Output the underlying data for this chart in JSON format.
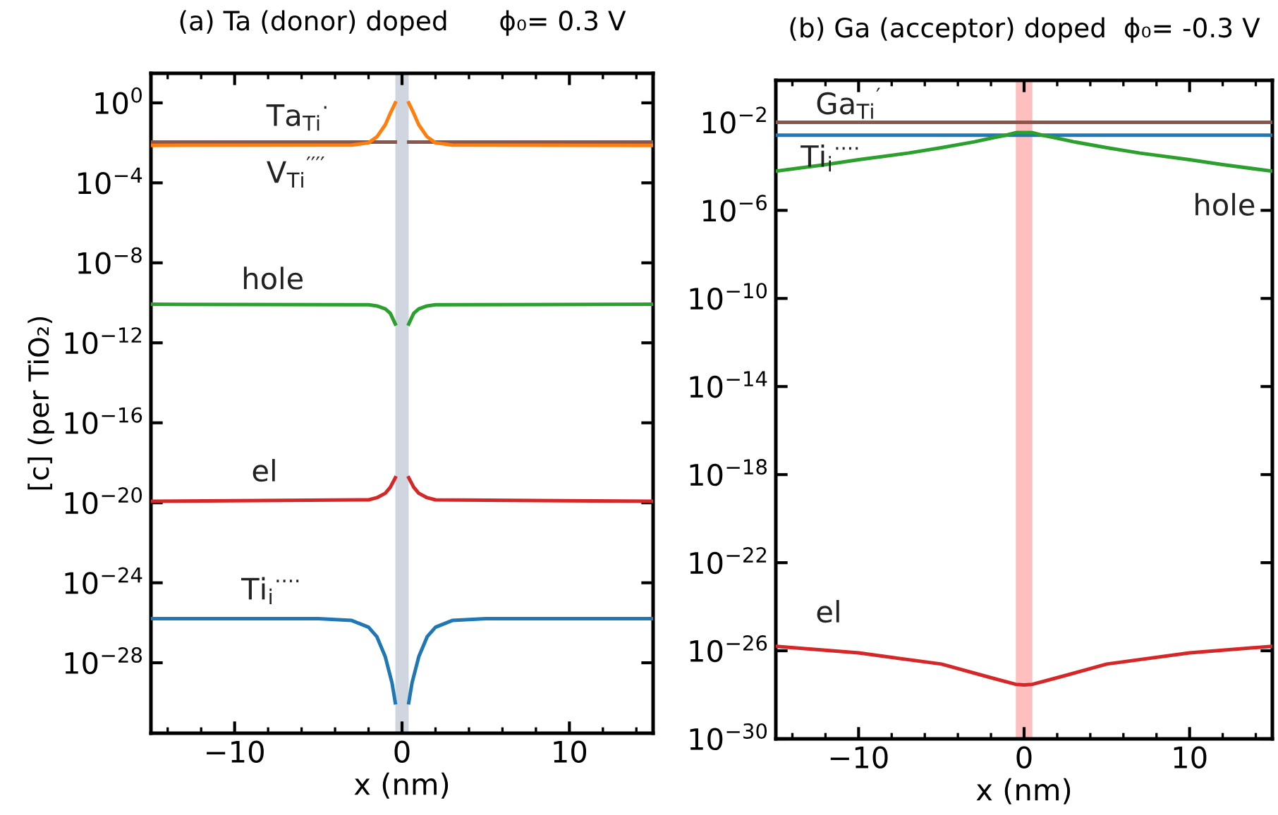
{
  "chart_data": [
    {
      "type": "line",
      "title": "(a) Ta (donor) doped      ϕ₀= 0.3 V",
      "xlabel": "x (nm)",
      "ylabel": "[c] (per TiO₂)",
      "log": "y",
      "grid": false,
      "legend": false,
      "xlim": [
        -15,
        15
      ],
      "xticks": [
        {
          "value": -10,
          "label": "−10"
        },
        0,
        10
      ],
      "ylim": [
        3e-32,
        30
      ],
      "yticks": [
        {
          "value": 1,
          "label": "10$^{0}$"
        },
        {
          "value": 0.0001,
          "label": "10$^{−4}$"
        },
        {
          "value": 1e-08,
          "label": "10$^{−8}$"
        },
        {
          "value": 1e-12,
          "label": "10$^{−12}$"
        },
        {
          "value": 1e-16,
          "label": "10$^{−16}$"
        },
        {
          "value": 1e-20,
          "label": "10$^{−20}$"
        },
        {
          "value": 1e-24,
          "label": "10$^{−24}$"
        },
        {
          "value": 1e-28,
          "label": "10$^{−28}$"
        }
      ],
      "bands": [
        {
          "axis": "x",
          "from": -0.4,
          "to": 0.4,
          "color": "#d0d6e0"
        }
      ],
      "series": [
        {
          "name": "V$_{Ti}$$^{′′′′}$",
          "color": "#8c564b",
          "x": [
            -15,
            -0.4,
            0,
            0.4,
            15
          ],
          "values": [
            0.011,
            0.011,
            null,
            0.011,
            0.011
          ]
        },
        {
          "name": "Ta$_{Ti}$$^{·}$",
          "color": "#ff7f0e",
          "x": [
            -15,
            -3,
            -2,
            -1.5,
            -1,
            -0.7,
            -0.4,
            0,
            0.4,
            0.7,
            1,
            1.5,
            2,
            3,
            15
          ],
          "values": [
            0.0075,
            0.0078,
            0.01,
            0.02,
            0.08,
            0.3,
            1,
            null,
            1,
            0.3,
            0.08,
            0.02,
            0.01,
            0.0078,
            0.0075
          ]
        },
        {
          "name": "hole",
          "color": "#2ca02c",
          "x": [
            -15,
            -2,
            -1.5,
            -1,
            -0.7,
            -0.4,
            0,
            0.4,
            0.7,
            1,
            1.5,
            2,
            15
          ],
          "values": [
            8.5e-11,
            8e-11,
            7e-11,
            5e-11,
            3e-11,
            8.7e-12,
            null,
            8.7e-12,
            3e-11,
            5e-11,
            7e-11,
            8e-11,
            8.5e-11
          ]
        },
        {
          "name": "el",
          "color": "#d62728",
          "x": [
            -15,
            -2,
            -1.5,
            -1,
            -0.7,
            -0.4,
            0,
            0.4,
            0.7,
            1,
            1.5,
            2,
            15
          ],
          "values": [
            1.2e-20,
            1.4e-20,
            1.8e-20,
            3e-20,
            6e-20,
            1.8e-19,
            null,
            1.8e-19,
            6e-20,
            3e-20,
            1.8e-20,
            1.4e-20,
            1.2e-20
          ]
        },
        {
          "name": "Ti$_{i}$$^{····}$",
          "color": "#1f77b4",
          "x": [
            -15,
            -5,
            -3,
            -2,
            -1.5,
            -1,
            -0.6,
            -0.4,
            0,
            0.4,
            0.6,
            1,
            1.5,
            2,
            3,
            5,
            15
          ],
          "values": [
            1.6e-26,
            1.6e-26,
            1.3e-26,
            6e-27,
            2e-27,
            2e-28,
            1e-29,
            1e-30,
            null,
            1e-30,
            1e-29,
            2e-28,
            2e-27,
            6e-27,
            1.3e-26,
            1.6e-26,
            1.6e-26
          ]
        }
      ]
    },
    {
      "type": "line",
      "title": "(b) Ga (acceptor) doped  ϕ₀= -0.3 V",
      "xlabel": "x (nm)",
      "log": "y",
      "grid": false,
      "legend": false,
      "xlim": [
        -15,
        15
      ],
      "xticks": [
        {
          "value": -10,
          "label": "−10"
        },
        0,
        10
      ],
      "ylim": [
        1e-30,
        0.8
      ],
      "yticks": [
        {
          "value": 0.01,
          "label": "10$^{−2}$"
        },
        {
          "value": 1e-06,
          "label": "10$^{−6}$"
        },
        {
          "value": 1e-10,
          "label": "10$^{−10}$"
        },
        {
          "value": 1e-14,
          "label": "10$^{−14}$"
        },
        {
          "value": 1e-18,
          "label": "10$^{−18}$"
        },
        {
          "value": 1e-22,
          "label": "10$^{−22}$"
        },
        {
          "value": 1e-26,
          "label": "10$^{−26}$"
        },
        {
          "value": 1e-30,
          "label": "10$^{−30}$"
        }
      ],
      "bands": [
        {
          "axis": "x",
          "from": -0.5,
          "to": 0.5,
          "color": "#ffbfbf"
        }
      ],
      "series": [
        {
          "name": "Ga$_{Ti}$$^{′}$",
          "color": "#8c564b",
          "x": [
            -15,
            15
          ],
          "values": [
            0.01,
            0.01
          ]
        },
        {
          "name": "Ti$_{i}$$^{····}$",
          "color": "#1f77b4",
          "x": [
            -15,
            15
          ],
          "values": [
            0.0026,
            0.0026
          ]
        },
        {
          "name": "hole",
          "color": "#2ca02c",
          "x": [
            -15,
            -12,
            -10,
            -7,
            -5,
            -3,
            -2,
            -1,
            -0.5,
            0.5,
            1,
            2,
            3,
            5,
            7,
            10,
            12,
            15
          ],
          "values": [
            6e-05,
            0.00012,
            0.0002,
            0.0004,
            0.0007,
            0.0013,
            0.0019,
            0.0027,
            0.0034,
            0.0034,
            0.0027,
            0.0019,
            0.0013,
            0.0007,
            0.0004,
            0.0002,
            0.00012,
            6e-05
          ]
        },
        {
          "name": "el",
          "color": "#d62728",
          "x": [
            -15,
            -10,
            -5,
            -2,
            -0.5,
            0,
            0.5,
            2,
            5,
            10,
            15
          ],
          "values": [
            1.6e-26,
            8e-27,
            2.5e-27,
            6e-28,
            3e-28,
            2.8e-28,
            3e-28,
            6e-28,
            2.5e-27,
            8e-27,
            1.6e-26
          ]
        }
      ]
    }
  ]
}
